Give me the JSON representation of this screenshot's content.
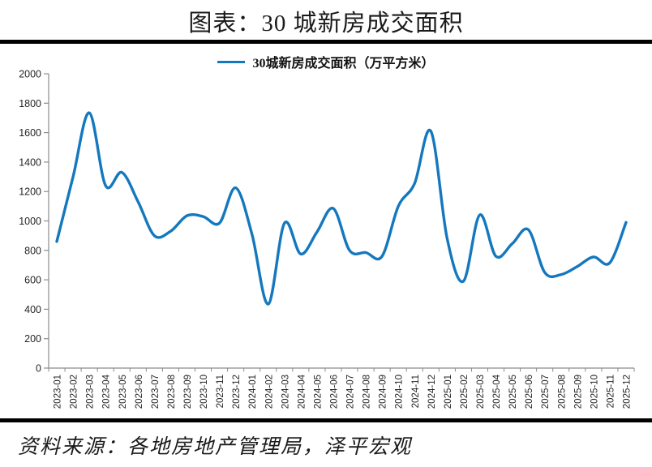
{
  "title": "图表：30 城新房成交面积",
  "source": "资料来源：各地房地产管理局，泽平宏观",
  "colors": {
    "line": "#1478BE",
    "axis": "#8C8C8C",
    "tick_label": "#262626",
    "rule": "#000000"
  },
  "chart_data": {
    "type": "line",
    "smooth": true,
    "grid": false,
    "legend_position": "top",
    "legend": "30城新房成交面积（万平方米）",
    "ylabel": "",
    "xlabel": "",
    "ylim": [
      0,
      2000
    ],
    "yticks": [
      0,
      200,
      400,
      600,
      800,
      1000,
      1200,
      1400,
      1600,
      1800,
      2000
    ],
    "x": [
      "2023-01",
      "2023-02",
      "2023-03",
      "2023-04",
      "2023-05",
      "2023-06",
      "2023-07",
      "2023-08",
      "2023-09",
      "2023-10",
      "2023-11",
      "2023-12",
      "2024-01",
      "2024-02",
      "2024-03",
      "2024-04",
      "2024-05",
      "2024-06",
      "2024-07",
      "2024-08",
      "2024-09",
      "2024-10",
      "2024-11",
      "2024-12",
      "2025-01",
      "2025-02",
      "2025-03",
      "2025-04",
      "2025-05",
      "2025-06",
      "2025-07",
      "2025-08",
      "2025-09",
      "2025-10",
      "2025-11",
      "2025-12"
    ],
    "series": [
      {
        "name": "30城新房成交面积（万平方米）",
        "values": [
          860,
          1300,
          1735,
          1240,
          1330,
          1130,
          900,
          930,
          1035,
          1030,
          985,
          1225,
          910,
          435,
          985,
          775,
          925,
          1085,
          800,
          785,
          760,
          1100,
          1255,
          1610,
          880,
          590,
          1040,
          760,
          845,
          940,
          650,
          635,
          690,
          755,
          715,
          990
        ]
      }
    ]
  }
}
